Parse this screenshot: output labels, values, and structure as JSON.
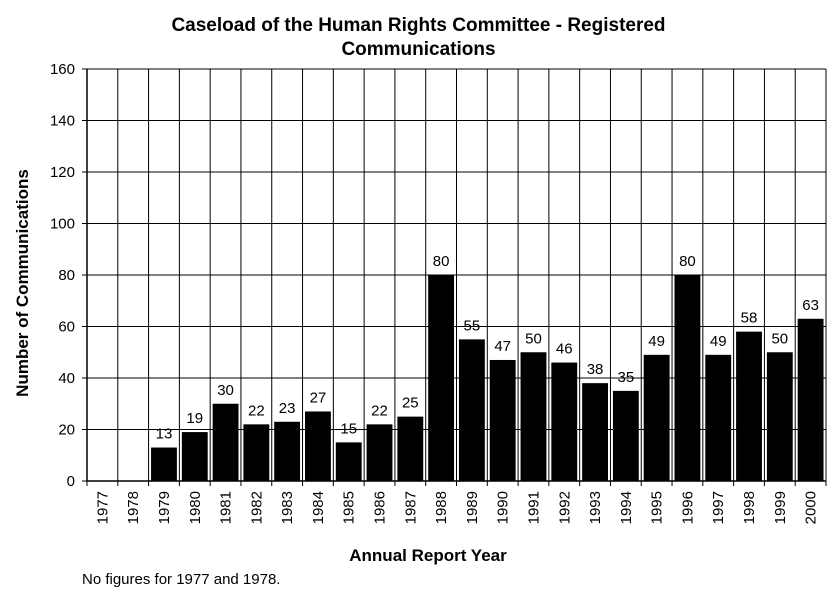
{
  "chart_data": {
    "type": "bar",
    "title_line1": "Caseload of the Human Rights Committee - Registered",
    "title_line2": "Communications",
    "xlabel": "Annual Report Year",
    "ylabel": "Number of Communications",
    "ylim": [
      0,
      160
    ],
    "yticks": [
      0,
      20,
      40,
      60,
      80,
      100,
      120,
      140,
      160
    ],
    "grid": true,
    "categories": [
      "1977",
      "1978",
      "1979",
      "1980",
      "1981",
      "1982",
      "1983",
      "1984",
      "1985",
      "1986",
      "1987",
      "1988",
      "1989",
      "1990",
      "1991",
      "1992",
      "1993",
      "1994",
      "1995",
      "1996",
      "1997",
      "1998",
      "1999",
      "2000"
    ],
    "values": [
      null,
      null,
      13,
      19,
      30,
      22,
      23,
      27,
      15,
      22,
      25,
      80,
      55,
      47,
      50,
      46,
      38,
      35,
      49,
      80,
      49,
      58,
      50,
      63
    ],
    "bar_color": "#000000",
    "footnote": "No figures for 1977 and 1978."
  }
}
